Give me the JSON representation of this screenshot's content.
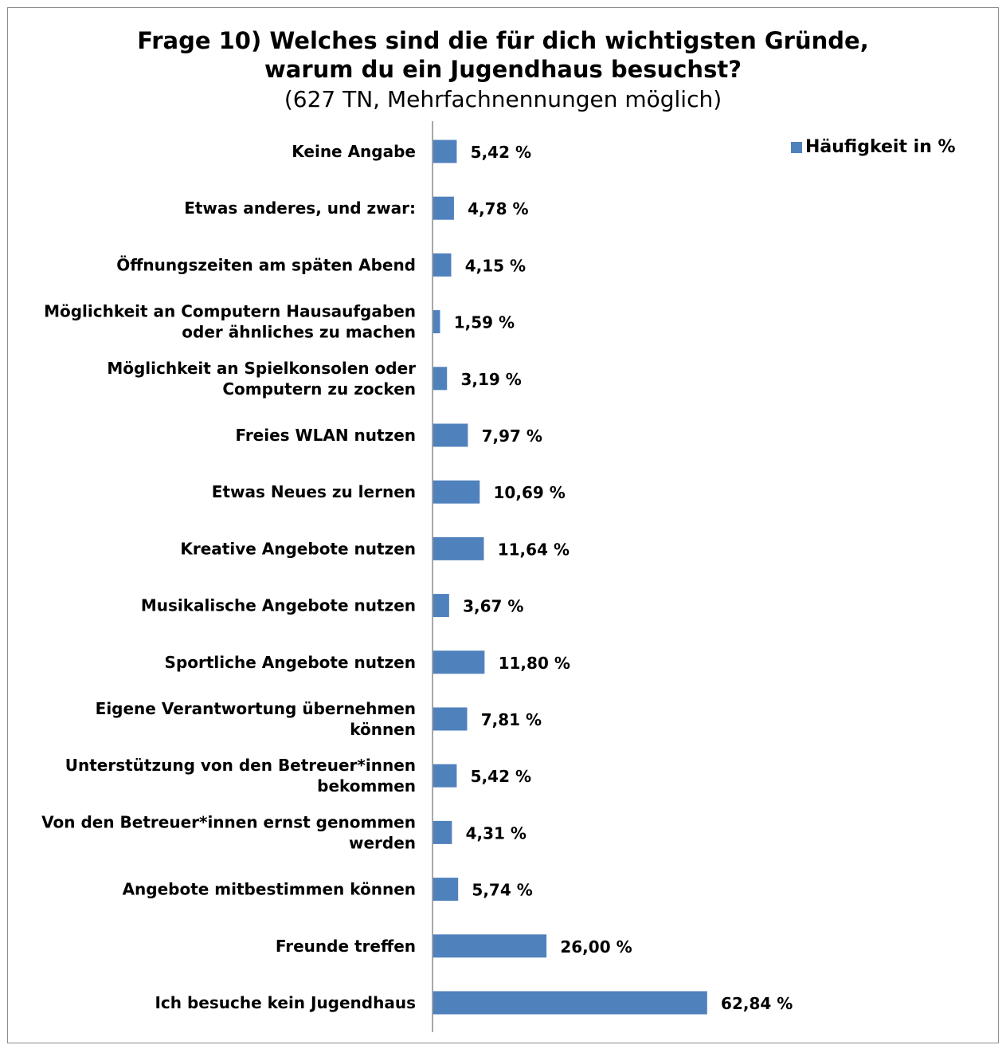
{
  "chart_data": {
    "type": "bar",
    "orientation": "horizontal",
    "title": "Frage 10) Welches sind die für dich wichtigsten Gründe,",
    "title_line2": "warum du ein Jugendhaus besuchst?",
    "subtitle": "(627 TN, Mehrfachnennungen möglich)",
    "categories": [
      [
        "Keine Angabe"
      ],
      [
        "Etwas anderes, und zwar:"
      ],
      [
        "Öffnungszeiten am späten Abend"
      ],
      [
        "Möglichkeit an Computern Hausaufgaben",
        "oder ähnliches zu machen"
      ],
      [
        "Möglichkeit an Spielkonsolen oder",
        "Computern zu zocken"
      ],
      [
        "Freies WLAN nutzen"
      ],
      [
        "Etwas Neues zu lernen"
      ],
      [
        "Kreative Angebote nutzen"
      ],
      [
        "Musikalische Angebote nutzen"
      ],
      [
        "Sportliche Angebote nutzen"
      ],
      [
        "Eigene Verantwortung übernehmen",
        "können"
      ],
      [
        "Unterstützung von den Betreuer*innen",
        "bekommen"
      ],
      [
        "Von den Betreuer*innen ernst genommen",
        "werden"
      ],
      [
        "Angebote mitbestimmen können"
      ],
      [
        "Freunde treffen"
      ],
      [
        "Ich besuche kein Jugendhaus"
      ]
    ],
    "values": [
      5.42,
      4.78,
      4.15,
      1.59,
      3.19,
      7.97,
      10.69,
      11.64,
      3.67,
      11.8,
      7.81,
      5.42,
      4.31,
      5.74,
      26.0,
      62.84
    ],
    "value_labels": [
      "5,42 %",
      "4,78 %",
      "4,15 %",
      "1,59 %",
      "3,19 %",
      "7,97 %",
      "10,69 %",
      "11,64 %",
      "3,67 %",
      "11,80 %",
      "7,81 %",
      "5,42 %",
      "4,31 %",
      "5,74 %",
      "26,00 %",
      "62,84 %"
    ],
    "series": [
      {
        "name": "Häufigkeit in %"
      }
    ],
    "xlim": [
      0,
      100
    ],
    "grid": false,
    "legend_position": "top-right",
    "bar_color": "#4f81bd"
  }
}
